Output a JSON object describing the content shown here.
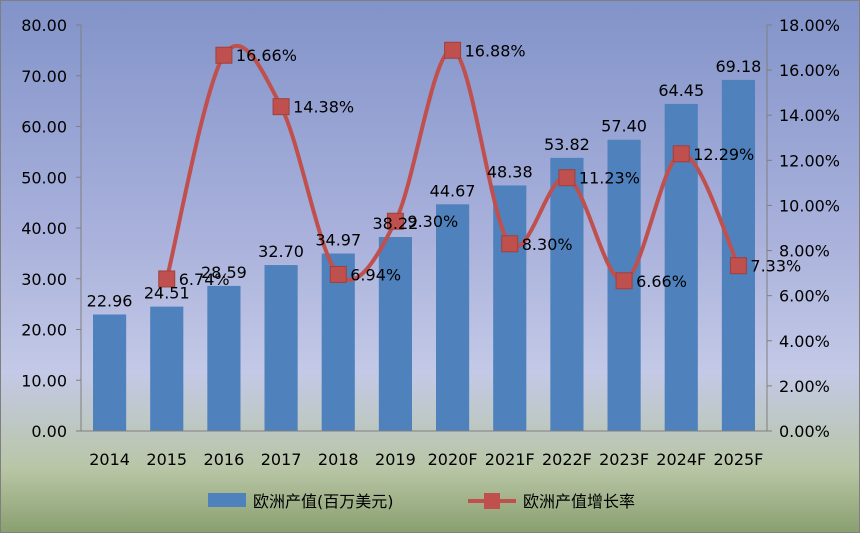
{
  "chart_data": {
    "type": "bar",
    "categories": [
      "2014",
      "2015",
      "2016",
      "2017",
      "2018",
      "2019",
      "2020F",
      "2021F",
      "2022F",
      "2023F",
      "2024F",
      "2025F"
    ],
    "series": [
      {
        "name": "欧洲产值(百万美元)",
        "type": "bar",
        "axis": "left",
        "values": [
          22.96,
          24.51,
          28.59,
          32.7,
          34.97,
          38.22,
          44.67,
          48.38,
          53.82,
          57.4,
          64.45,
          69.18
        ],
        "labels": [
          "22.96",
          "24.51",
          "28.59",
          "32.70",
          "34.97",
          "38.22",
          "44.67",
          "48.38",
          "53.82",
          "57.40",
          "64.45",
          "69.18"
        ],
        "color": "#4f81bd"
      },
      {
        "name": "欧洲产值增长率",
        "type": "line",
        "axis": "right",
        "values": [
          null,
          6.74,
          16.66,
          14.38,
          6.94,
          9.3,
          16.88,
          8.3,
          11.23,
          6.66,
          12.29,
          7.33
        ],
        "labels": [
          "",
          "6.74%",
          "16.66%",
          "14.38%",
          "6.94%",
          "9.30%",
          "16.88%",
          "8.30%",
          "11.23%",
          "6.66%",
          "12.29%",
          "7.33%"
        ],
        "line_color": "#c0504d",
        "marker_color": "#c0504d"
      }
    ],
    "left_axis": {
      "min": 0,
      "max": 80,
      "step": 10,
      "tick_labels": [
        "0.00",
        "10.00",
        "20.00",
        "30.00",
        "40.00",
        "50.00",
        "60.00",
        "70.00",
        "80.00"
      ]
    },
    "right_axis": {
      "min": 0,
      "max": 18,
      "step": 2,
      "tick_labels": [
        "0.00%",
        "2.00%",
        "4.00%",
        "6.00%",
        "8.00%",
        "10.00%",
        "12.00%",
        "14.00%",
        "16.00%",
        "18.00%"
      ]
    },
    "legend": {
      "position": "bottom",
      "items": [
        "欧洲产值(百万美元)",
        "欧洲产值增长率"
      ]
    },
    "grid": false
  }
}
